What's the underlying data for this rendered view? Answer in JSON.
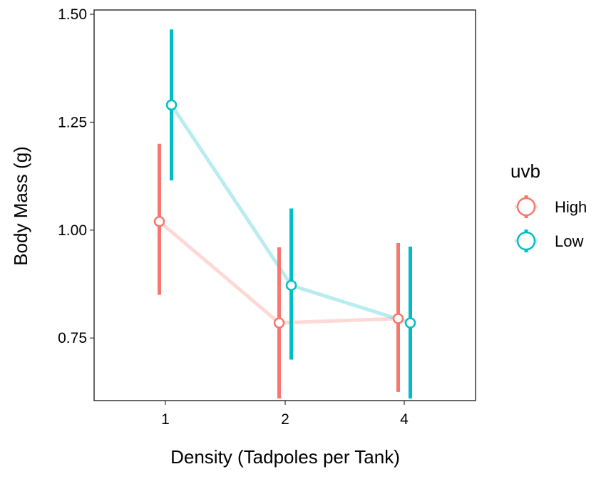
{
  "chart_data": {
    "type": "line",
    "xlabel": "Density (Tadpoles per Tank)",
    "ylabel": "Body Mass (g)",
    "categories": [
      "1",
      "2",
      "4"
    ],
    "ylim": [
      0.605,
      1.51
    ],
    "yticks": [
      0.75,
      1.0,
      1.25,
      1.5
    ],
    "ytick_labels": [
      "0.75",
      "1.00",
      "1.25",
      "1.50"
    ],
    "grid": false,
    "legend": {
      "title": "uvb",
      "position": "right"
    },
    "series": [
      {
        "name": "High",
        "color": "#F8766D",
        "values": [
          1.02,
          0.785,
          0.795
        ],
        "lower": [
          0.85,
          0.61,
          0.625
        ],
        "upper": [
          1.2,
          0.96,
          0.97
        ]
      },
      {
        "name": "Low",
        "color": "#00BFC4",
        "values": [
          1.29,
          0.872,
          0.785
        ],
        "lower": [
          1.115,
          0.7,
          0.61
        ],
        "upper": [
          1.465,
          1.05,
          0.962
        ]
      }
    ]
  }
}
